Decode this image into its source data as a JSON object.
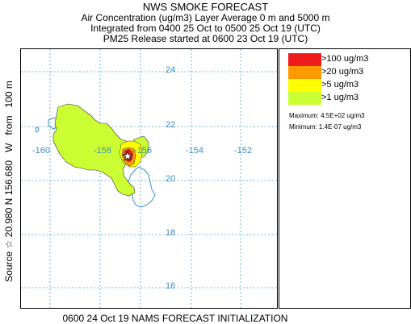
{
  "header": {
    "title": "NWS SMOKE FORECAST",
    "line2": "Air Concentration (ug/m3) Layer Average    0 m and  5000 m",
    "line3": "Integrated from 0400 25 Oct to 0500 25 Oct 19 (UTC)",
    "line4": "PM25 Release started at 0600 23 Oct 19 (UTC)"
  },
  "side_label": {
    "source_prefix": "Source",
    "source_symbol": "☆",
    "lat": "20.980",
    "lat_hemi": "N",
    "lon": "156.680",
    "lon_hemi": "W",
    "from_word": "from",
    "height": "100 m"
  },
  "footer": "0600 24 Oct 19 NAMS FORECAST INITIALIZATION",
  "map": {
    "lat_labels": [
      "24",
      "22",
      "20",
      "18",
      "16"
    ],
    "lon_labels": [
      "-160",
      "-158",
      "-156",
      "-154",
      "-152"
    ],
    "source_marker": "source-star",
    "colors": {
      "grid": "#4a9fd6",
      "coast": "#3a8fc6",
      "c100": "#ee1c1c",
      "c20": "#ff9a00",
      "c5": "#ffff00",
      "c1": "#ccff33"
    }
  },
  "legend": {
    "items": [
      {
        "label": ">100 ug/m3",
        "color": "#ee1c1c"
      },
      {
        "label": ">20 ug/m3",
        "color": "#ff9a00"
      },
      {
        "label": ">5 ug/m3",
        "color": "#ffff00"
      },
      {
        "label": ">1 ug/m3",
        "color": "#ccff33"
      }
    ],
    "maximum": "Maximum: 4.5E+02 ug/m3",
    "minimum": "Minimum: 1.4E-07 ug/m3"
  }
}
